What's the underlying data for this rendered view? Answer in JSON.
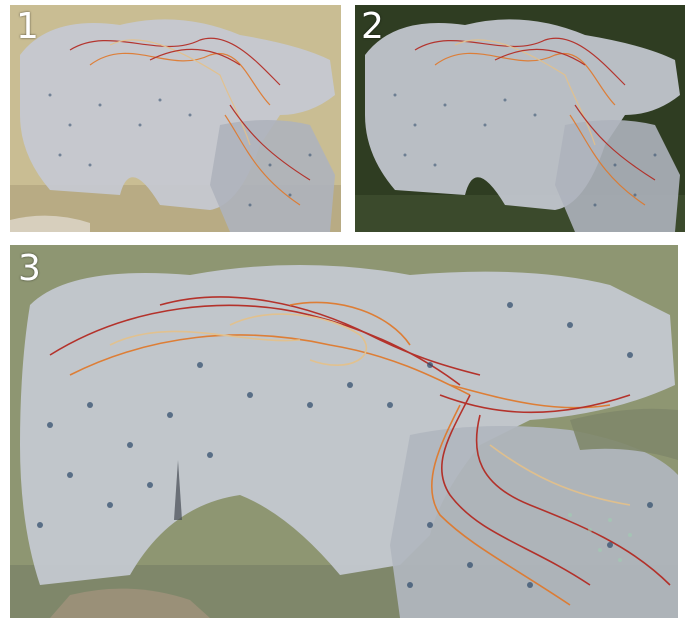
{
  "panels": [
    {
      "label": "1",
      "background": "#c9bd93"
    },
    {
      "label": "2",
      "background": "#2f3d22"
    },
    {
      "label": "3",
      "background": "#8e9672"
    }
  ],
  "colors": {
    "mesh": "#c5c9d2",
    "flow_red": "#b3261e",
    "flow_orange": "#e0782a",
    "flow_tan": "#e4c18a",
    "particles": "#2e4a6a",
    "terrain": "#9a9078"
  }
}
